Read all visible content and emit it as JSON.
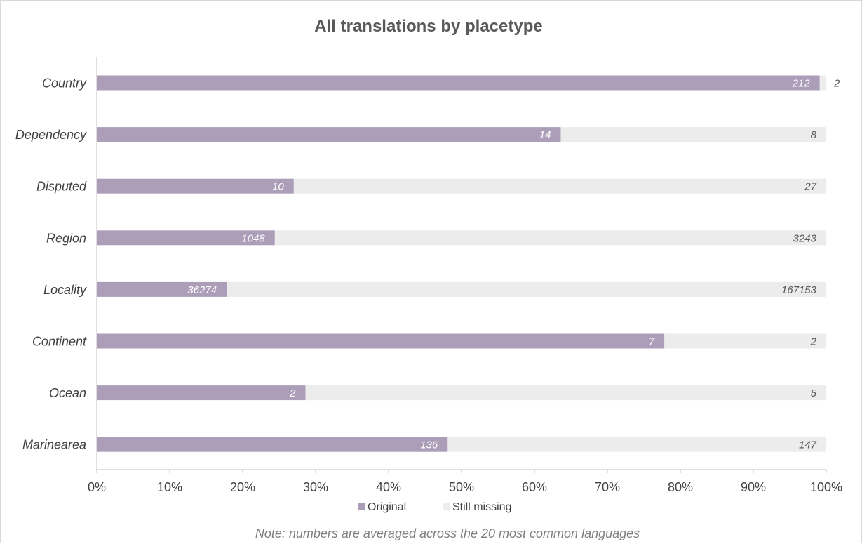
{
  "chart_data": {
    "type": "bar",
    "orientation": "horizontal",
    "stacked": "percent",
    "title": "All translations by placetype",
    "categories": [
      "Country",
      "Dependency",
      "Disputed",
      "Region",
      "Locality",
      "Continent",
      "Ocean",
      "Marinearea"
    ],
    "series": [
      {
        "name": "Original",
        "color": "#ac9eb8",
        "values": [
          212,
          14,
          10,
          1048,
          36274,
          7,
          2,
          136
        ],
        "share_percent": [
          99.1,
          63.6,
          27.0,
          24.4,
          17.8,
          77.8,
          28.6,
          48.1
        ]
      },
      {
        "name": "Still missing",
        "color": "#ececec",
        "values": [
          2,
          8,
          27,
          3243,
          167153,
          2,
          5,
          147
        ]
      }
    ],
    "x_ticks": [
      "0%",
      "10%",
      "20%",
      "30%",
      "40%",
      "50%",
      "60%",
      "70%",
      "80%",
      "90%",
      "100%"
    ],
    "xlim": [
      0,
      100
    ],
    "grid": false,
    "legend_position": "bottom",
    "note": "Note: numbers are averaged across the 20 most common languages"
  }
}
